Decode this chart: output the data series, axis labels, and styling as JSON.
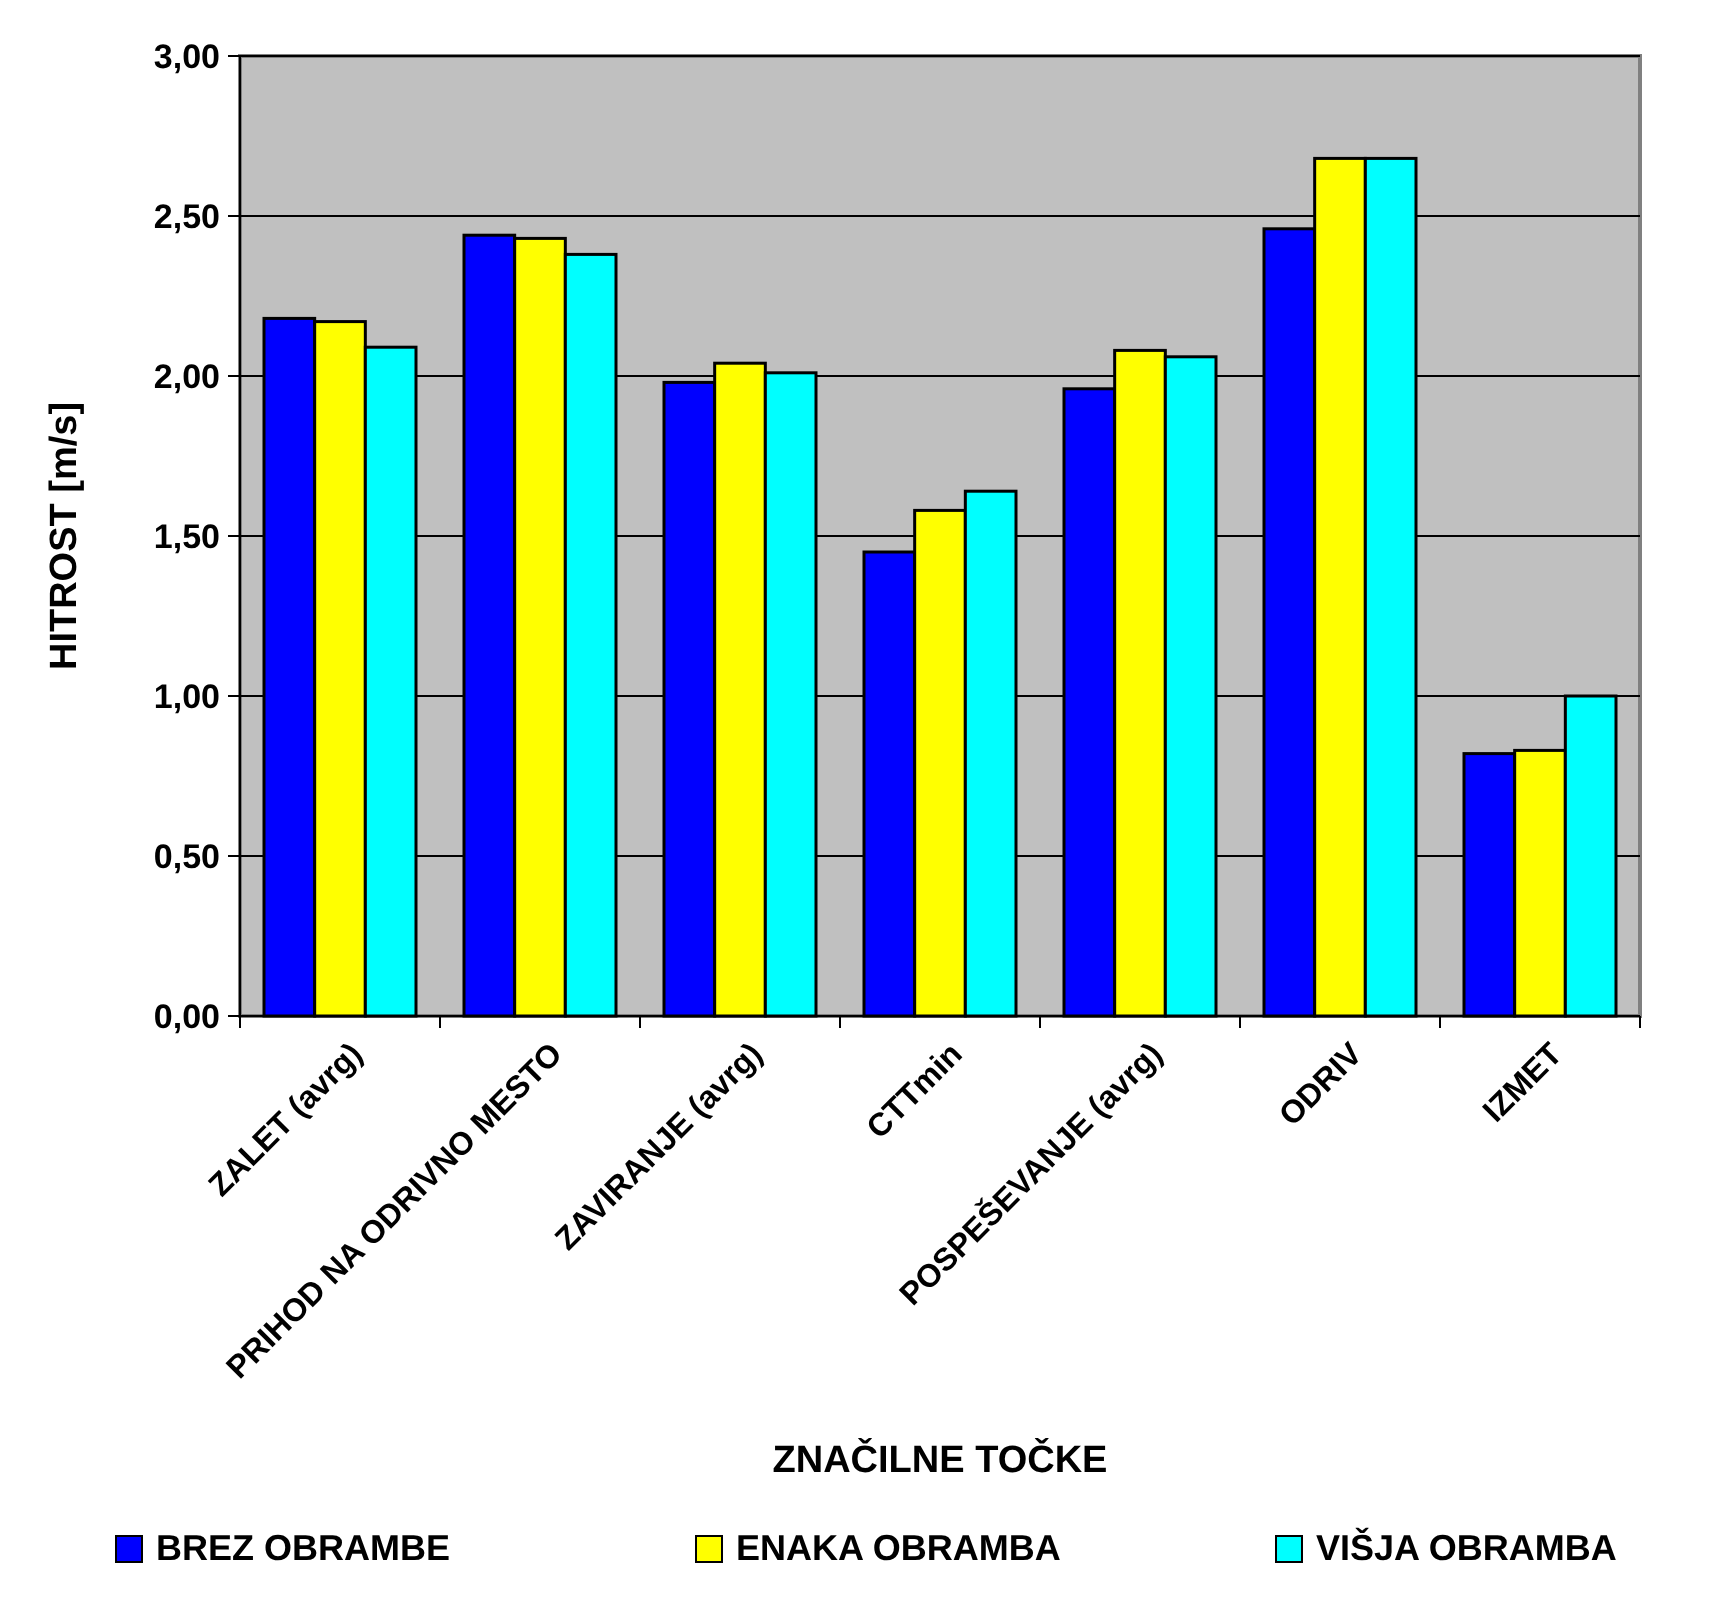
{
  "chart_data": {
    "type": "bar",
    "xlabel": "ZNAČILNE TOČKE",
    "ylabel": "HITROST [m/s]",
    "categories": [
      "ZALET (avrg)",
      "PRIHOD NA ODRIVNO MESTO",
      "ZAVIRANJE (avrg)",
      "CTTmin",
      "POSPEŠEVANJE (avrg)",
      "ODRIV",
      "IZMET"
    ],
    "series": [
      {
        "name": "BREZ OBRAMBE",
        "color": "#0000ff",
        "values": [
          2.18,
          2.44,
          1.98,
          1.45,
          1.96,
          2.46,
          0.82
        ]
      },
      {
        "name": "ENAKA OBRAMBA",
        "color": "#ffff00",
        "values": [
          2.17,
          2.43,
          2.04,
          1.58,
          2.08,
          2.68,
          0.83
        ]
      },
      {
        "name": "VIŠJA OBRAMBA",
        "color": "#00ffff",
        "values": [
          2.09,
          2.38,
          2.01,
          1.64,
          2.06,
          2.68,
          1.0
        ]
      }
    ],
    "ylim": [
      0,
      3
    ],
    "yticks": [
      {
        "value": 0,
        "label": "0,00"
      },
      {
        "value": 0.5,
        "label": "0,50"
      },
      {
        "value": 1,
        "label": "1,00"
      },
      {
        "value": 1.5,
        "label": "1,50"
      },
      {
        "value": 2,
        "label": "2,00"
      },
      {
        "value": 2.5,
        "label": "2,50"
      },
      {
        "value": 3,
        "label": "3,00"
      }
    ],
    "grid": "y",
    "legend": "bottom"
  }
}
